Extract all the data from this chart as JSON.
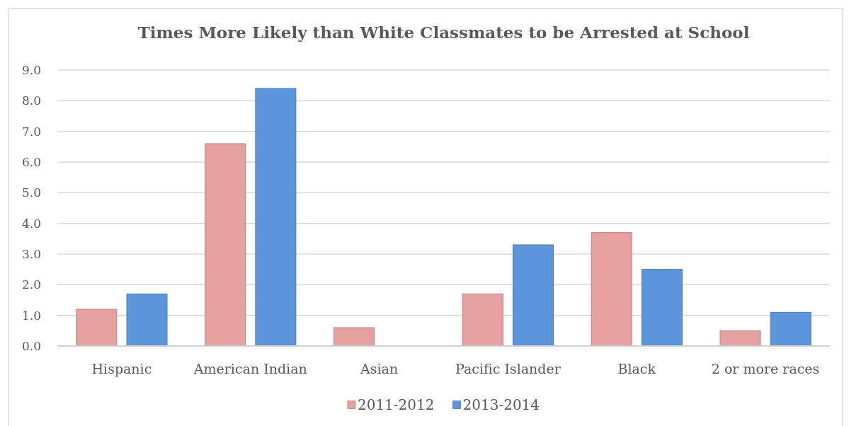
{
  "chart_data": {
    "type": "bar",
    "title": "Times More Likely than White Classmates to be Arrested at School",
    "categories": [
      "Hispanic",
      "American Indian",
      "Asian",
      "Pacific Islander",
      "Black",
      "2 or more races"
    ],
    "series": [
      {
        "name": "2011-2012",
        "color": "#e6a09e",
        "values": [
          1.2,
          6.6,
          0.6,
          1.7,
          3.7,
          0.5
        ]
      },
      {
        "name": "2013-2014",
        "color": "#5b96dc",
        "values": [
          1.7,
          8.4,
          null,
          3.3,
          2.5,
          1.1
        ]
      }
    ],
    "ylim": [
      0,
      9
    ],
    "yticks": [
      {
        "value": 0,
        "label": "0.0"
      },
      {
        "value": 1,
        "label": "1.0"
      },
      {
        "value": 2,
        "label": "2.0"
      },
      {
        "value": 3,
        "label": "3.0"
      },
      {
        "value": 4,
        "label": "4.0"
      },
      {
        "value": 5,
        "label": "5.0"
      },
      {
        "value": 6,
        "label": "6.0"
      },
      {
        "value": 7,
        "label": "7.0"
      },
      {
        "value": 8,
        "label": "8.0"
      },
      {
        "value": 9,
        "label": "9.0"
      }
    ],
    "grid": "y",
    "legend": "bottom"
  }
}
